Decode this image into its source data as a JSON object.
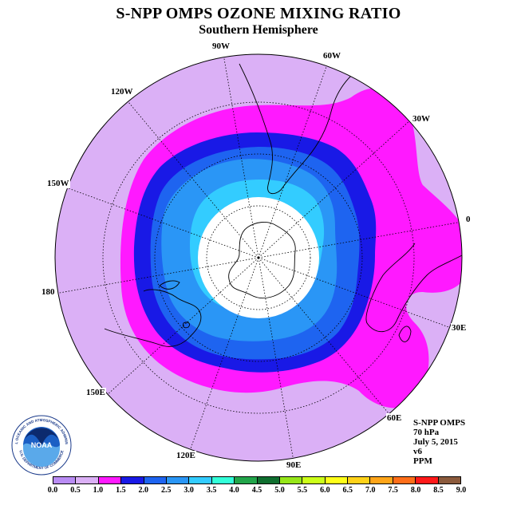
{
  "header": {
    "title": "S-NPP OMPS OZONE MIXING RATIO",
    "subtitle": "Southern Hemisphere"
  },
  "map": {
    "longitude_labels": [
      "90W",
      "60W",
      "30W",
      "0",
      "30E",
      "60E",
      "90E",
      "120E",
      "150E",
      "180",
      "150W",
      "120W"
    ]
  },
  "info": {
    "lines": [
      "S-NPP OMPS",
      "70 hPa",
      "July 5, 2015",
      "v6",
      "PPM"
    ]
  },
  "colorbar": {
    "ticks": [
      "0.0",
      "0.5",
      "1.0",
      "1.5",
      "2.0",
      "2.5",
      "3.0",
      "3.5",
      "4.0",
      "4.5",
      "5.0",
      "5.5",
      "6.0",
      "6.5",
      "7.0",
      "7.5",
      "8.0",
      "8.5",
      "9.0"
    ],
    "colors": [
      "#b98cf4",
      "#dbb0f6",
      "#ff19ff",
      "#1919e6",
      "#1e64f0",
      "#2a96f6",
      "#33ccff",
      "#33ffd9",
      "#22a54a",
      "#0f6e2e",
      "#96e619",
      "#ccff19",
      "#ffff19",
      "#ffd219",
      "#ffa519",
      "#ff6e19",
      "#ff1919",
      "#8b5a3c"
    ]
  },
  "logo": {
    "text": "NOAA",
    "ring_text": "NATIONAL OCEANIC AND ATMOSPHERIC ADMINISTRATION",
    "ring_text_bottom": "U.S. DEPARTMENT OF COMMERCE"
  }
}
